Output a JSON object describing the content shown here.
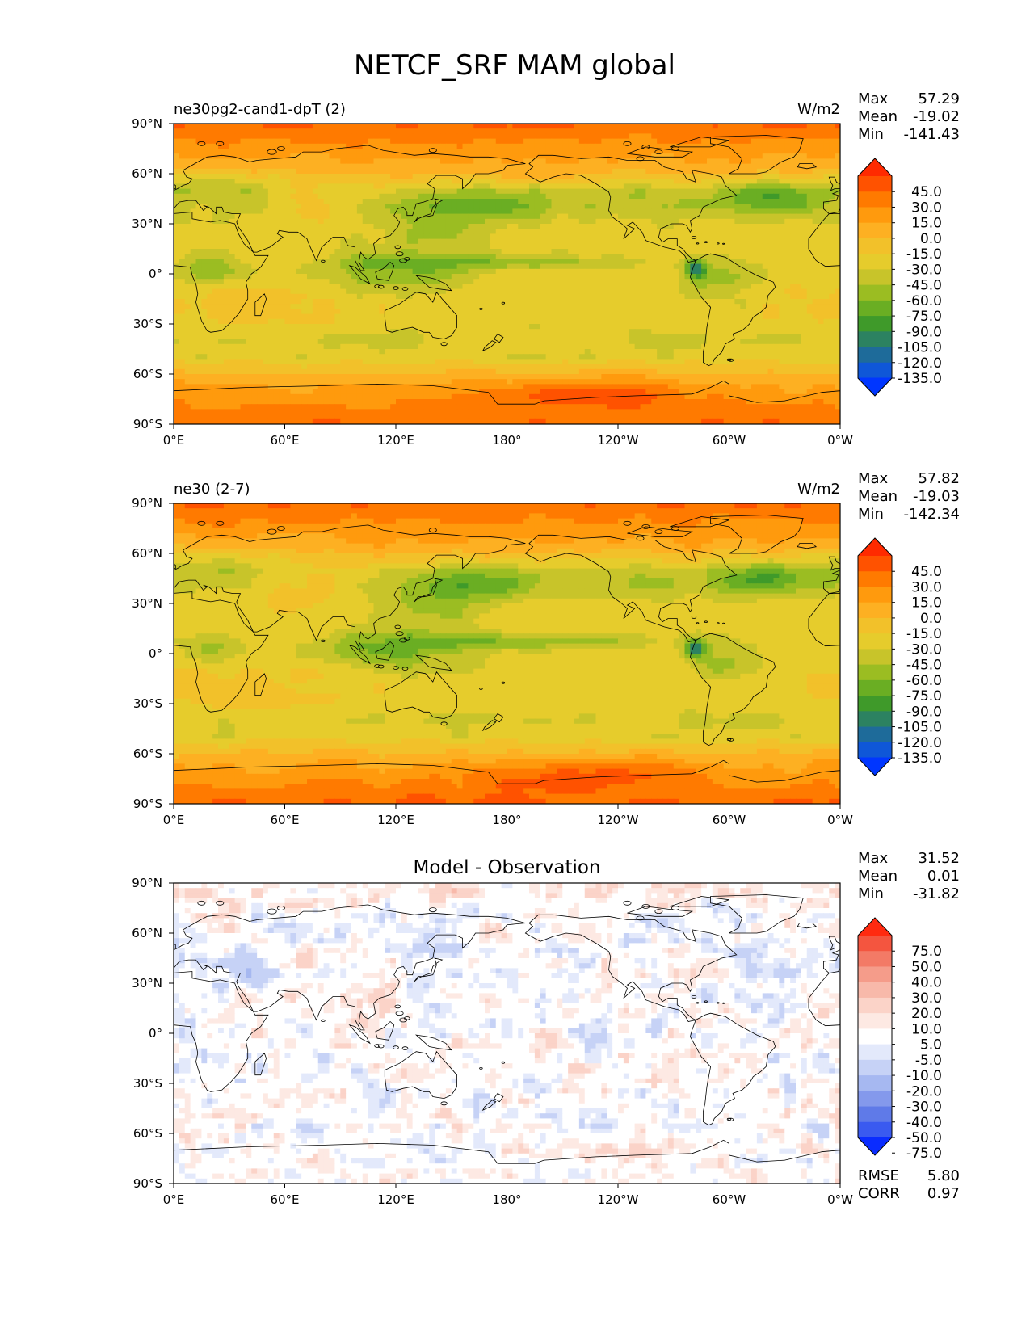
{
  "figure_title": "NETCF_SRF MAM global",
  "panels": [
    {
      "left_title": "ne30pg2-cand1-dpT (2)",
      "center_title": "",
      "units": "W/m2",
      "stats": {
        "max_label": "Max",
        "max": "57.29",
        "mean_label": "Mean",
        "mean": "-19.02",
        "min_label": "Min",
        "min": "-141.43"
      },
      "colorbar": {
        "labels": [
          "45.0",
          "30.0",
          "15.0",
          "0.0",
          "-15.0",
          "-30.0",
          "-45.0",
          "-60.0",
          "-75.0",
          "-90.0",
          "-105.0",
          "-120.0",
          "-135.0"
        ],
        "colors": [
          "#ff2a00",
          "#ff5200",
          "#ff7a00",
          "#ff9a0d",
          "#fdb022",
          "#f2c12a",
          "#e6cc2c",
          "#c8c42a",
          "#9bbd22",
          "#6aae23",
          "#3f9a2a",
          "#2c8261",
          "#1e6b9a",
          "#0f57d8",
          "#0036ff"
        ]
      },
      "field": "control"
    },
    {
      "left_title": "ne30 (2-7)",
      "center_title": "",
      "units": "W/m2",
      "stats": {
        "max_label": "Max",
        "max": "57.82",
        "mean_label": "Mean",
        "mean": "-19.03",
        "min_label": "Min",
        "min": "-142.34"
      },
      "colorbar": {
        "labels": [
          "45.0",
          "30.0",
          "15.0",
          "0.0",
          "-15.0",
          "-30.0",
          "-45.0",
          "-60.0",
          "-75.0",
          "-90.0",
          "-105.0",
          "-120.0",
          "-135.0"
        ],
        "colors": [
          "#ff2a00",
          "#ff5200",
          "#ff7a00",
          "#ff9a0d",
          "#fdb022",
          "#f2c12a",
          "#e6cc2c",
          "#c8c42a",
          "#9bbd22",
          "#6aae23",
          "#3f9a2a",
          "#2c8261",
          "#1e6b9a",
          "#0f57d8",
          "#0036ff"
        ]
      },
      "field": "test"
    },
    {
      "left_title": "",
      "center_title": "Model - Observation",
      "units": "",
      "stats": {
        "max_label": "Max",
        "max": "31.52",
        "mean_label": "Mean",
        "mean": "0.01",
        "min_label": "Min",
        "min": "-31.82"
      },
      "colorbar": {
        "labels": [
          "75.0",
          "50.0",
          "40.0",
          "30.0",
          "20.0",
          "10.0",
          "5.0",
          "-5.0",
          "-10.0",
          "-20.0",
          "-30.0",
          "-40.0",
          "-50.0",
          "-75.0"
        ],
        "colors": [
          "#ff2a10",
          "#f4553f",
          "#f37a66",
          "#f59c8a",
          "#f8b9aa",
          "#fbd3c8",
          "#fde9e3",
          "#ffffff",
          "#e3e9fb",
          "#c6d2f6",
          "#a6b8f1",
          "#8499ec",
          "#5f7ae8",
          "#3a5af0",
          "#0a2cff"
        ]
      },
      "field": "diff",
      "metrics": {
        "rmse_label": "RMSE",
        "rmse": "5.80",
        "corr_label": "CORR",
        "corr": "0.97"
      }
    }
  ],
  "axes": {
    "lon_ticks": [
      "0°E",
      "60°E",
      "120°E",
      "180°",
      "120°W",
      "60°W",
      "0°W"
    ],
    "lat_ticks": [
      "90°N",
      "60°N",
      "30°N",
      "0°",
      "30°S",
      "60°S",
      "90°S"
    ]
  }
}
